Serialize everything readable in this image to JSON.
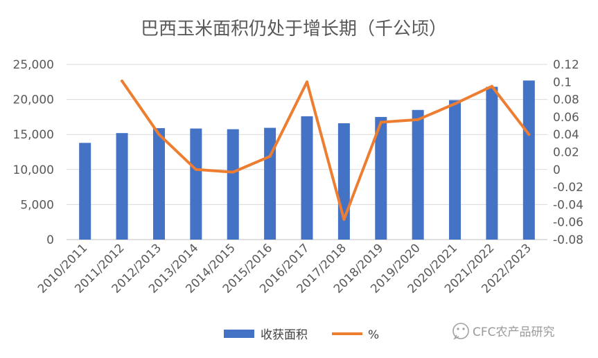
{
  "chart_data": {
    "type": "bar",
    "title": "巴西玉米面积仍处于增长期（千公顷）",
    "categories": [
      "2010/2011",
      "2011/2012",
      "2012/2013",
      "2013/2014",
      "2014/2015",
      "2015/2016",
      "2016/2017",
      "2017/2018",
      "2018/2019",
      "2019/2020",
      "2020/2021",
      "2021/2022",
      "2022/2023"
    ],
    "series": [
      {
        "name": "收获面积",
        "type": "bar",
        "axis": "left",
        "color": "#4472C4",
        "values": [
          13800,
          15200,
          15900,
          15850,
          15750,
          15950,
          17600,
          16600,
          17500,
          18500,
          19900,
          21800,
          22700
        ]
      },
      {
        "name": "%",
        "type": "line",
        "axis": "right",
        "color": "#ED7D31",
        "values": [
          null,
          0.101,
          0.04,
          0.0,
          -0.003,
          0.015,
          0.1,
          -0.057,
          0.054,
          0.057,
          0.075,
          0.095,
          0.04
        ]
      }
    ],
    "y_left": {
      "min": 0,
      "max": 25000,
      "ticks": [
        "0",
        "5,000",
        "10,000",
        "15,000",
        "20,000",
        "25,000"
      ]
    },
    "y_right": {
      "min": -0.08,
      "max": 0.12,
      "ticks": [
        "-0.08",
        "-0.06",
        "-0.04",
        "-0.02",
        "0",
        "0.02",
        "0.04",
        "0.06",
        "0.08",
        "0.1",
        "0.12"
      ]
    },
    "grid": true,
    "legend": "bottom"
  },
  "watermark": {
    "text": "CFC农产品研究",
    "icon": "wechat-icon"
  }
}
